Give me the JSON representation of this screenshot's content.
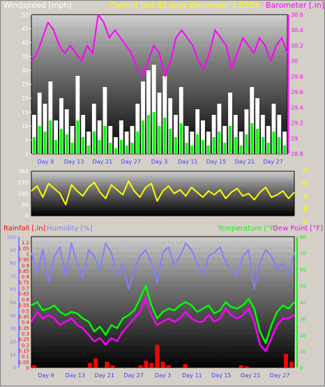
{
  "header": {
    "wind_title": "Windspeed [mph]",
    "center_title": "Current last 30 days December 1 2024",
    "baro_title": "Barometer [.in]"
  },
  "colors": {
    "wind": "#ffffff",
    "gust": "#ffffff",
    "wind_avg": "#00ff00",
    "barometer": "#ff00ff",
    "wind_dir": "#ffff00",
    "humidity": "#8080ff",
    "temperature": "#00ff00",
    "dew_point": "#ff00ff",
    "rainfall": "#ff0000",
    "title_yellow": "#ffff00"
  },
  "chart_data": [
    {
      "type": "line",
      "name": "wind-barometer",
      "title": "",
      "left_axis_label": "Windspeed [mph]",
      "right_axis_label": "Barometer [.in]",
      "x_ticks": [
        "Day 9",
        "Day 13",
        "Day 21",
        "Day 27",
        "Day 3",
        "Day 11",
        "Day 15",
        "Day 21",
        "Day 27"
      ],
      "x_tick_labels": [
        "Day 9",
        "Day 13",
        "Day 21",
        "Day 27",
        "Day 3",
        "Day 11",
        "Day 15",
        "Day 21",
        "Day 27"
      ],
      "left_ylim": [
        0,
        50
      ],
      "left_ticks": [
        "0",
        "5",
        "10",
        "15",
        "20",
        "25",
        "30",
        "35",
        "40",
        "45",
        "50"
      ],
      "right_ylim": [
        28.8,
        30.6
      ],
      "right_ticks": [
        "28.8",
        "29",
        "29.2",
        "29.4",
        "29.6",
        "29.8",
        "30",
        "30.2",
        "30.4",
        "30.6"
      ],
      "barometer": [
        30.0,
        30.1,
        30.3,
        30.5,
        30.4,
        30.2,
        30.1,
        30.2,
        30.1,
        30.0,
        30.2,
        30.1,
        30.6,
        30.5,
        30.3,
        30.4,
        30.3,
        30.2,
        30.1,
        29.9,
        29.8,
        30.0,
        30.2,
        30.1,
        29.8,
        30.0,
        30.3,
        30.4,
        30.3,
        30.2,
        30.0,
        29.9,
        30.1,
        30.4,
        30.3,
        30.2,
        29.9,
        30.1,
        30.3,
        30.2,
        30.1,
        30.3,
        30.2,
        30.0,
        30.2,
        30.3,
        30.1
      ],
      "wind_gust": [
        14,
        22,
        18,
        26,
        12,
        20,
        16,
        10,
        28,
        14,
        8,
        18,
        12,
        24,
        10,
        6,
        12,
        8,
        10,
        18,
        26,
        30,
        32,
        22,
        28,
        20,
        14,
        24,
        10,
        8,
        16,
        12,
        8,
        14,
        18,
        10,
        22,
        14,
        8,
        16,
        24,
        20,
        14,
        10,
        18,
        14,
        8
      ],
      "wind_avg": [
        6,
        10,
        8,
        12,
        5,
        9,
        7,
        4,
        12,
        6,
        3,
        8,
        5,
        10,
        4,
        2,
        5,
        3,
        4,
        8,
        12,
        14,
        15,
        10,
        13,
        9,
        6,
        11,
        4,
        3,
        7,
        5,
        3,
        6,
        8,
        4,
        10,
        6,
        3,
        7,
        11,
        9,
        6,
        4,
        8,
        6,
        3
      ]
    },
    {
      "type": "line",
      "name": "wind-direction",
      "title": "",
      "ylim": [
        0,
        360
      ],
      "y_ticks": [
        "0",
        "90",
        "180",
        "270",
        "360"
      ],
      "compass_labels": [
        "N",
        "W",
        "S",
        "E",
        "N"
      ],
      "direction": [
        200,
        240,
        150,
        260,
        220,
        180,
        90,
        250,
        200,
        160,
        230,
        270,
        190,
        140,
        250,
        210,
        170,
        280,
        200,
        150,
        230,
        260,
        120,
        200,
        240,
        180,
        210,
        160,
        230,
        190,
        150,
        200,
        170,
        210,
        140,
        190,
        220,
        160,
        180,
        130,
        190,
        230,
        150,
        170,
        200,
        140,
        190
      ]
    },
    {
      "type": "line",
      "name": "rain-humidity-temp",
      "title": "",
      "left_axis_label_rain": "Rainfall [.in]",
      "left_axis_label_hum": "Humidity [%]",
      "right_axis_label_temp": "Temperature [°F]",
      "right_axis_label_dew": "Dew Point [°F]",
      "rain_ylim": [
        0,
        1.15
      ],
      "rain_ticks": [
        "0",
        "0.05",
        "0.1",
        "0.15",
        "0.2",
        "0.25",
        "0.3",
        "0.35",
        "0.4",
        "0.45",
        "0.5",
        "0.55",
        "0.6",
        "0.65",
        "0.7",
        "0.75",
        "0.8",
        "0.85",
        "0.9",
        "0.95",
        "1",
        "1.05",
        "1.1"
      ],
      "hum_ylim": [
        0,
        100
      ],
      "hum_ticks": [
        "0",
        "10",
        "20",
        "30",
        "40",
        "50",
        "60",
        "70",
        "80",
        "90",
        "100"
      ],
      "temp_ylim": [
        0,
        80
      ],
      "temp_ticks": [
        "0",
        "10",
        "20",
        "30",
        "40",
        "50",
        "60",
        "70",
        "80"
      ],
      "humidity": [
        88,
        72,
        90,
        65,
        85,
        92,
        70,
        95,
        80,
        68,
        90,
        85,
        75,
        95,
        88,
        70,
        80,
        60,
        75,
        85,
        90,
        80,
        65,
        88,
        92,
        78,
        85,
        95,
        90,
        80,
        70,
        85,
        88,
        92,
        80,
        75,
        70,
        85,
        90,
        60,
        80,
        90,
        85,
        75,
        80,
        70,
        88
      ],
      "temperature": [
        38,
        40,
        35,
        36,
        38,
        34,
        32,
        34,
        33,
        30,
        28,
        22,
        25,
        20,
        26,
        24,
        30,
        32,
        35,
        42,
        50,
        38,
        30,
        34,
        36,
        35,
        38,
        40,
        38,
        34,
        36,
        38,
        33,
        35,
        40,
        37,
        36,
        38,
        42,
        36,
        22,
        15,
        26,
        34,
        38,
        36,
        40
      ],
      "dew_point": [
        28,
        34,
        30,
        32,
        30,
        26,
        28,
        30,
        26,
        24,
        20,
        16,
        18,
        14,
        18,
        16,
        22,
        26,
        30,
        34,
        42,
        32,
        26,
        28,
        30,
        28,
        30,
        34,
        30,
        28,
        28,
        32,
        28,
        30,
        36,
        32,
        30,
        32,
        36,
        28,
        14,
        10,
        18,
        26,
        30,
        30,
        32
      ],
      "rainfall": [
        0.02,
        0.0,
        0.0,
        0.0,
        0.0,
        0.0,
        0.0,
        0.0,
        0.0,
        0.0,
        0.04,
        0.08,
        0.0,
        0.05,
        0.02,
        0.0,
        0.0,
        0.0,
        0.0,
        0.02,
        0.06,
        0.04,
        0.2,
        0.05,
        0.02,
        0.0,
        0.0,
        0.03,
        0.0,
        0.0,
        0.0,
        0.0,
        0.0,
        0.0,
        0.0,
        0.0,
        0.0,
        0.02,
        0.01,
        0.0,
        0.0,
        0.0,
        0.0,
        0.0,
        0.0,
        0.12,
        0.05
      ]
    }
  ]
}
